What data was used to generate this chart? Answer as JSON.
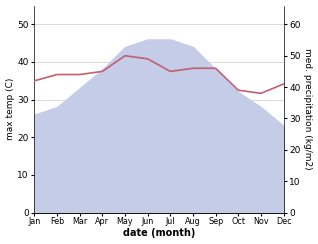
{
  "months": [
    "Jan",
    "Feb",
    "Mar",
    "Apr",
    "May",
    "Jun",
    "Jul",
    "Aug",
    "Sep",
    "Oct",
    "Nov",
    "Dec"
  ],
  "max_temp": [
    26,
    28,
    33,
    38,
    44,
    46,
    46,
    44,
    38,
    32,
    28,
    23
  ],
  "precipitation": [
    42,
    44,
    44,
    45,
    50,
    49,
    45,
    46,
    46,
    39,
    38,
    41
  ],
  "temp_fill_color": "#c5cce8",
  "precip_color": "#c06070",
  "left_ylim": [
    0,
    55
  ],
  "right_ylim": [
    0,
    66
  ],
  "left_yticks": [
    0,
    10,
    20,
    30,
    40,
    50
  ],
  "right_yticks": [
    0,
    10,
    20,
    30,
    40,
    50,
    60
  ],
  "xlabel": "date (month)",
  "ylabel_left": "max temp (C)",
  "ylabel_right": "med. precipitation (kg/m2)",
  "bg_color": "#ffffff"
}
